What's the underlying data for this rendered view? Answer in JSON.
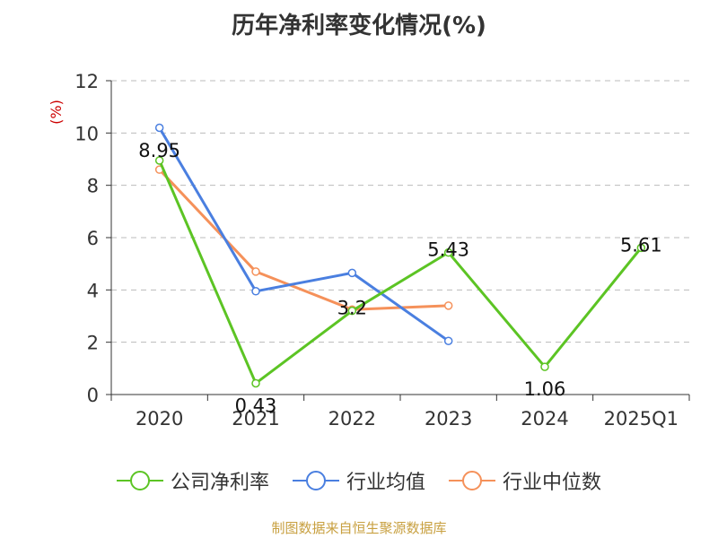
{
  "title": "历年净利率变化情况(%)",
  "source": "制图数据来自恒生聚源数据库",
  "colors": {
    "company": "#5cc424",
    "avg": "#4a7fe0",
    "median": "#f5915a",
    "axis": "#333333",
    "grid": "#bbbbbb",
    "ylabel": "#cc0000"
  },
  "chart_data": {
    "type": "line",
    "title": "历年净利率变化情况(%)",
    "ylabel": "(%)",
    "xlabel": "",
    "ylim": [
      0,
      12
    ],
    "yticks": [
      0,
      2,
      4,
      6,
      8,
      10,
      12
    ],
    "grid": true,
    "legend_position": "bottom",
    "categories": [
      "2020",
      "2021",
      "2022",
      "2023",
      "2024",
      "2025Q1"
    ],
    "series": [
      {
        "name": "公司净利率",
        "color": "#5cc424",
        "values": [
          8.95,
          0.43,
          3.2,
          5.43,
          1.06,
          5.61
        ],
        "labels": [
          "8.95",
          "0.43",
          "3.2",
          "5.43",
          "1.06",
          "5.61"
        ]
      },
      {
        "name": "行业均值",
        "color": "#4a7fe0",
        "values": [
          10.2,
          3.95,
          4.65,
          2.05,
          null,
          null
        ]
      },
      {
        "name": "行业中位数",
        "color": "#f5915a",
        "values": [
          8.6,
          4.7,
          3.25,
          3.4,
          null,
          null
        ]
      }
    ]
  }
}
